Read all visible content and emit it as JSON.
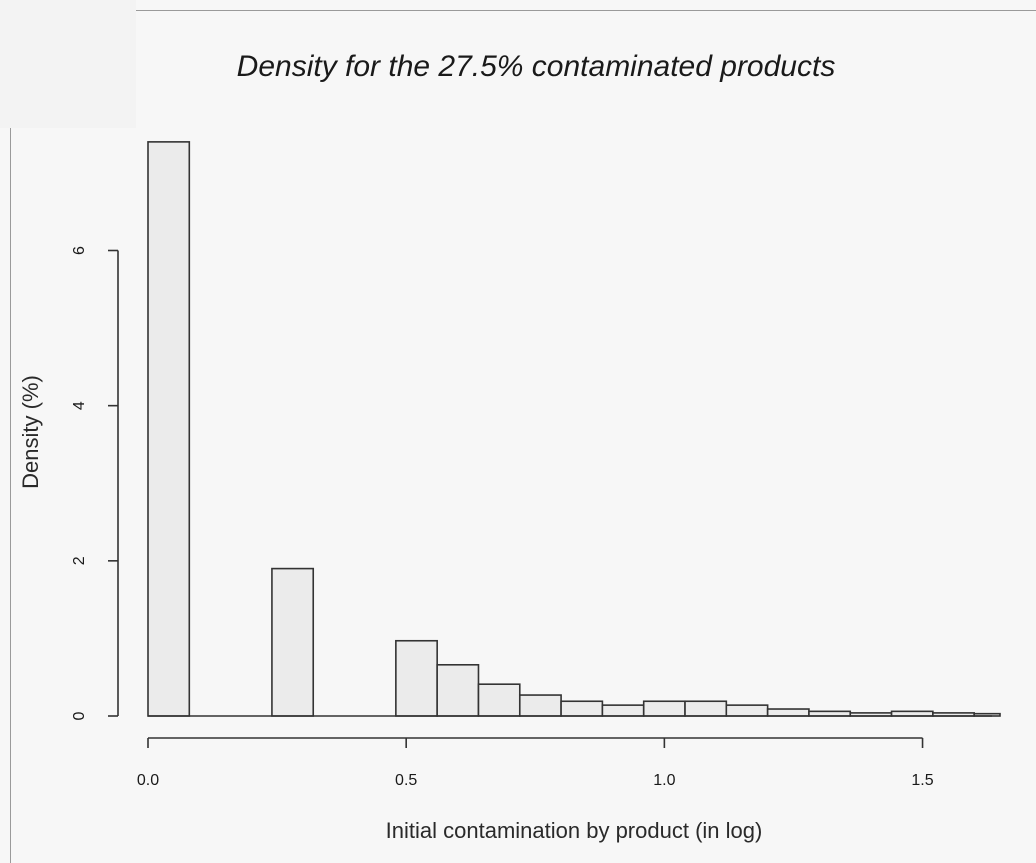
{
  "chart_data": {
    "type": "bar",
    "title": "Density for the 27.5% contaminated products",
    "xlabel": "Initial contamination by product (in log)",
    "ylabel": "Density (%)",
    "xlim": [
      0,
      1.65
    ],
    "ylim": [
      0,
      7.45
    ],
    "xticks": [
      "0.0",
      "0.5",
      "1.0",
      "1.5"
    ],
    "yticks": [
      "0",
      "2",
      "4",
      "6"
    ],
    "bin_width": 0.08,
    "bins": [
      {
        "x0": 0.0,
        "x1": 0.08,
        "value": 7.4
      },
      {
        "x0": 0.08,
        "x1": 0.16,
        "value": 0
      },
      {
        "x0": 0.16,
        "x1": 0.24,
        "value": 0
      },
      {
        "x0": 0.24,
        "x1": 0.32,
        "value": 1.9
      },
      {
        "x0": 0.32,
        "x1": 0.4,
        "value": 0
      },
      {
        "x0": 0.4,
        "x1": 0.48,
        "value": 0
      },
      {
        "x0": 0.48,
        "x1": 0.56,
        "value": 0.97
      },
      {
        "x0": 0.56,
        "x1": 0.64,
        "value": 0.66
      },
      {
        "x0": 0.64,
        "x1": 0.72,
        "value": 0.41
      },
      {
        "x0": 0.72,
        "x1": 0.8,
        "value": 0.27
      },
      {
        "x0": 0.8,
        "x1": 0.88,
        "value": 0.19
      },
      {
        "x0": 0.88,
        "x1": 0.96,
        "value": 0.14
      },
      {
        "x0": 0.96,
        "x1": 1.04,
        "value": 0.19
      },
      {
        "x0": 1.04,
        "x1": 1.12,
        "value": 0.19
      },
      {
        "x0": 1.12,
        "x1": 1.2,
        "value": 0.14
      },
      {
        "x0": 1.2,
        "x1": 1.28,
        "value": 0.09
      },
      {
        "x0": 1.28,
        "x1": 1.36,
        "value": 0.06
      },
      {
        "x0": 1.36,
        "x1": 1.44,
        "value": 0.04
      },
      {
        "x0": 1.44,
        "x1": 1.52,
        "value": 0.06
      },
      {
        "x0": 1.52,
        "x1": 1.6,
        "value": 0.04
      },
      {
        "x0": 1.6,
        "x1": 1.65,
        "value": 0.03
      }
    ],
    "colors": {
      "bar_fill": "#ebebeb",
      "bar_stroke": "#333333",
      "axis": "#333333"
    }
  }
}
